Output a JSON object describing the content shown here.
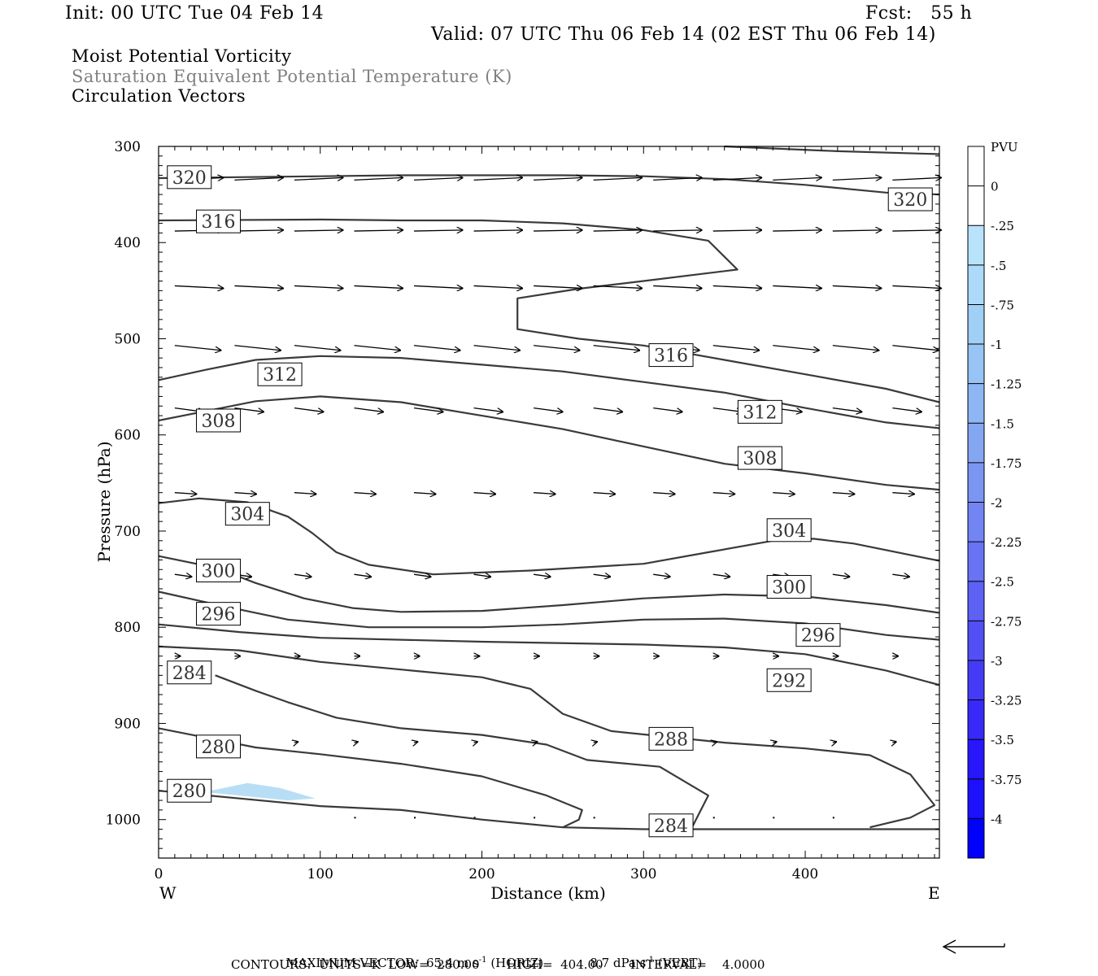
{
  "header": {
    "init": "Init: 00 UTC Tue 04 Feb 14",
    "fcst": "Fcst:   55 h",
    "valid": "Valid: 07 UTC Thu 06 Feb 14 (02 EST Thu 06 Feb 14)"
  },
  "titles": {
    "line1": "Moist Potential Vorticity",
    "line2": "Saturation Equivalent Potential Temperature (K)",
    "line3": "Circulation Vectors"
  },
  "colors": {
    "contour": "#3a3a3a",
    "pv_fill": "#b8def5",
    "accent_blue": "#0000ff"
  },
  "footer": {
    "max_vector_label": "MAXIMUM VECTOR:",
    "horiz_value": "65.4 m s",
    "horiz_exp": "-1",
    "horiz_tag": "(HORIZ)",
    "vert_value": "8.7 dPa s",
    "vert_exp": "-1",
    "vert_tag": "(VERT)",
    "contours": "CONTOURS:  UNITS=K  LOW=  280.00       HIGH=  404.00       INTERVAL=    4.0000"
  },
  "chart_data": {
    "type": "cross-section",
    "xlabel": "Distance (km)",
    "ylabel": "Pressure (hPa)",
    "xlim": [
      0,
      483
    ],
    "ylim": [
      1040,
      300
    ],
    "x_ticks": [
      0,
      100,
      200,
      300,
      400
    ],
    "y_ticks": [
      300,
      400,
      500,
      600,
      700,
      800,
      900,
      1000
    ],
    "x_end_labels": {
      "left": "W",
      "right": "E"
    },
    "colorbar": {
      "label": "PVU",
      "ticks": [
        "0",
        "-.25",
        "-.5",
        "-.75",
        "-1",
        "-1.25",
        "-1.5",
        "-1.75",
        "-2",
        "-2.25",
        "-2.5",
        "-2.75",
        "-3",
        "-3.25",
        "-3.5",
        "-3.75",
        "-4"
      ],
      "colors": [
        "#ffffff",
        "#ffffff",
        "#b9e3fb",
        "#addaf8",
        "#a0d0f6",
        "#97c4f5",
        "#8eb6f4",
        "#85a6f3",
        "#7b96f2",
        "#7285f3",
        "#6874f3",
        "#5d61f4",
        "#514ff5",
        "#453bf6",
        "#3829f8",
        "#2817fb",
        "#1c10fd",
        "#0000ff"
      ]
    },
    "theta_es_contours": [
      {
        "label": "320",
        "points": [
          [
            0,
            333
          ],
          [
            50,
            332
          ],
          [
            100,
            331
          ],
          [
            150,
            330
          ],
          [
            200,
            330
          ],
          [
            250,
            330
          ],
          [
            300,
            331
          ],
          [
            350,
            334
          ],
          [
            400,
            340
          ],
          [
            450,
            348
          ],
          [
            483,
            350
          ]
        ]
      },
      {
        "label": "320",
        "points": [
          [
            350,
            300
          ],
          [
            420,
            305
          ],
          [
            483,
            308
          ]
        ]
      },
      {
        "label": "316",
        "points": [
          [
            0,
            377
          ],
          [
            100,
            376
          ],
          [
            150,
            377
          ],
          [
            200,
            377
          ],
          [
            250,
            380
          ],
          [
            300,
            387
          ],
          [
            340,
            398
          ],
          [
            358,
            428
          ],
          [
            300,
            440
          ],
          [
            260,
            448
          ],
          [
            222,
            458
          ],
          [
            222,
            490
          ],
          [
            260,
            500
          ],
          [
            300,
            507
          ],
          [
            350,
            522
          ],
          [
            400,
            537
          ],
          [
            450,
            552
          ],
          [
            483,
            566
          ]
        ]
      },
      {
        "label": "312",
        "points": [
          [
            0,
            543
          ],
          [
            30,
            532
          ],
          [
            60,
            522
          ],
          [
            100,
            518
          ],
          [
            150,
            520
          ],
          [
            200,
            527
          ],
          [
            250,
            534
          ],
          [
            300,
            545
          ],
          [
            350,
            556
          ],
          [
            400,
            572
          ],
          [
            450,
            587
          ],
          [
            483,
            593
          ]
        ]
      },
      {
        "label": "308",
        "points": [
          [
            0,
            585
          ],
          [
            30,
            575
          ],
          [
            60,
            565
          ],
          [
            100,
            560
          ],
          [
            150,
            566
          ],
          [
            200,
            580
          ],
          [
            250,
            594
          ],
          [
            300,
            612
          ],
          [
            350,
            630
          ],
          [
            400,
            640
          ],
          [
            450,
            652
          ],
          [
            483,
            657
          ]
        ]
      },
      {
        "label": "304",
        "points": [
          [
            0,
            671
          ],
          [
            25,
            666
          ],
          [
            55,
            670
          ],
          [
            80,
            685
          ],
          [
            95,
            702
          ],
          [
            110,
            722
          ],
          [
            130,
            735
          ],
          [
            170,
            745
          ],
          [
            230,
            741
          ],
          [
            300,
            734
          ],
          [
            340,
            722
          ],
          [
            380,
            710
          ],
          [
            405,
            708
          ],
          [
            430,
            713
          ],
          [
            483,
            731
          ]
        ]
      },
      {
        "label": "300",
        "points": [
          [
            0,
            726
          ],
          [
            35,
            738
          ],
          [
            60,
            754
          ],
          [
            90,
            770
          ],
          [
            120,
            780
          ],
          [
            150,
            784
          ],
          [
            200,
            783
          ],
          [
            250,
            777
          ],
          [
            300,
            770
          ],
          [
            350,
            766
          ],
          [
            400,
            768
          ],
          [
            450,
            777
          ],
          [
            483,
            785
          ]
        ]
      },
      {
        "label": "296",
        "points": [
          [
            0,
            763
          ],
          [
            40,
            778
          ],
          [
            80,
            792
          ],
          [
            130,
            800
          ],
          [
            200,
            800
          ],
          [
            250,
            797
          ],
          [
            300,
            792
          ],
          [
            350,
            791
          ],
          [
            400,
            796
          ],
          [
            450,
            808
          ],
          [
            483,
            813
          ]
        ]
      },
      {
        "label": "292",
        "points": [
          [
            0,
            797
          ],
          [
            50,
            805
          ],
          [
            100,
            811
          ],
          [
            200,
            815
          ],
          [
            300,
            818
          ],
          [
            350,
            821
          ],
          [
            400,
            828
          ],
          [
            450,
            845
          ],
          [
            483,
            860
          ]
        ]
      },
      {
        "label": "284",
        "points": [
          [
            0,
            820
          ],
          [
            50,
            824
          ],
          [
            100,
            836
          ],
          [
            150,
            844
          ],
          [
            200,
            852
          ],
          [
            230,
            864
          ],
          [
            250,
            890
          ],
          [
            280,
            908
          ],
          [
            350,
            920
          ],
          [
            400,
            926
          ],
          [
            440,
            933
          ],
          [
            465,
            953
          ],
          [
            480,
            985
          ],
          [
            465,
            998
          ],
          [
            440,
            1008
          ]
        ]
      },
      {
        "label": "284",
        "points": [
          [
            35,
            850
          ],
          [
            60,
            866
          ],
          [
            80,
            878
          ],
          [
            110,
            894
          ],
          [
            150,
            905
          ],
          [
            200,
            912
          ],
          [
            240,
            922
          ],
          [
            265,
            938
          ],
          [
            310,
            945
          ],
          [
            340,
            975
          ],
          [
            330,
            1008
          ]
        ]
      },
      {
        "label": "280",
        "points": [
          [
            0,
            905
          ],
          [
            30,
            915
          ],
          [
            60,
            925
          ],
          [
            100,
            932
          ],
          [
            150,
            942
          ],
          [
            200,
            955
          ],
          [
            240,
            975
          ],
          [
            262,
            990
          ],
          [
            260,
            1000
          ],
          [
            250,
            1008
          ]
        ]
      },
      {
        "label": "280",
        "points": [
          [
            0,
            970
          ],
          [
            50,
            978
          ],
          [
            100,
            986
          ],
          [
            150,
            990
          ],
          [
            200,
            1000
          ],
          [
            250,
            1008
          ],
          [
            300,
            1010
          ],
          [
            400,
            1010
          ],
          [
            483,
            1010
          ]
        ]
      }
    ],
    "theta_es_labels": [
      {
        "text": "320",
        "x": 19,
        "p": 332
      },
      {
        "text": "320",
        "x": 465,
        "p": 355
      },
      {
        "text": "316",
        "x": 37,
        "p": 378
      },
      {
        "text": "316",
        "x": 317,
        "p": 517
      },
      {
        "text": "312",
        "x": 75,
        "p": 537
      },
      {
        "text": "312",
        "x": 372,
        "p": 576
      },
      {
        "text": "308",
        "x": 37,
        "p": 585
      },
      {
        "text": "308",
        "x": 372,
        "p": 624
      },
      {
        "text": "304",
        "x": 55,
        "p": 682
      },
      {
        "text": "304",
        "x": 390,
        "p": 699
      },
      {
        "text": "300",
        "x": 37,
        "p": 741
      },
      {
        "text": "300",
        "x": 390,
        "p": 758
      },
      {
        "text": "296",
        "x": 37,
        "p": 786
      },
      {
        "text": "296",
        "x": 408,
        "p": 808
      },
      {
        "text": "292",
        "x": 390,
        "p": 855
      },
      {
        "text": "288",
        "x": 317,
        "p": 916
      },
      {
        "text": "284",
        "x": 19,
        "p": 847
      },
      {
        "text": "284",
        "x": 317,
        "p": 1006
      },
      {
        "text": "280",
        "x": 37,
        "p": 924
      },
      {
        "text": "280",
        "x": 19,
        "p": 970
      }
    ],
    "mpv_shaded": {
      "value_pvu": -0.5,
      "points": [
        [
          32,
          970
        ],
        [
          55,
          962
        ],
        [
          75,
          967
        ],
        [
          97,
          978
        ],
        [
          80,
          980
        ],
        [
          50,
          975
        ],
        [
          32,
          972
        ]
      ]
    },
    "vectors": [
      {
        "p": 335,
        "x": [
          10,
          47,
          84,
          121,
          158,
          195,
          232,
          269,
          306,
          343,
          380,
          417,
          454
        ],
        "u": 1.0,
        "w": -0.05
      },
      {
        "p": 388,
        "x": [
          10,
          47,
          84,
          121,
          158,
          195,
          232,
          269,
          306,
          343,
          380,
          417,
          454
        ],
        "u": 1.0,
        "w": -0.02
      },
      {
        "p": 445,
        "x": [
          10,
          47,
          84,
          121,
          158,
          195,
          232,
          269,
          306,
          343,
          380,
          417,
          454
        ],
        "u": 1.0,
        "w": 0.05
      },
      {
        "p": 507,
        "x": [
          10,
          47,
          84,
          121,
          158,
          195,
          232,
          269,
          306,
          343,
          380,
          417,
          454
        ],
        "u": 0.95,
        "w": 0.1
      },
      {
        "p": 572,
        "x": [
          10,
          47,
          84,
          121,
          158,
          195,
          232,
          269,
          306,
          343,
          380,
          417,
          454
        ],
        "u": 0.6,
        "w": 0.08
      },
      {
        "p": 660,
        "x": [
          10,
          47,
          84,
          121,
          158,
          195,
          232,
          269,
          306,
          343,
          380,
          417,
          454
        ],
        "u": 0.45,
        "w": 0.03
      },
      {
        "p": 745,
        "x": [
          10,
          47,
          84,
          121,
          158,
          195,
          232,
          269,
          306,
          343,
          380,
          417,
          454
        ],
        "u": 0.35,
        "w": 0.05
      },
      {
        "p": 830,
        "x": [
          10,
          47,
          84,
          121,
          158,
          195,
          232,
          269,
          306,
          343,
          380,
          417,
          454
        ],
        "u": 0.12,
        "w": 0.0
      },
      {
        "p": 920,
        "x": [
          47,
          84,
          121,
          158,
          195,
          232,
          269,
          306,
          343,
          380,
          417,
          454
        ],
        "u": 0.08,
        "w": -0.02
      },
      {
        "p": 998,
        "x": [
          121,
          158,
          195,
          232,
          269,
          306,
          343,
          380,
          417
        ],
        "u": 0.03,
        "w": 0.0
      }
    ]
  }
}
